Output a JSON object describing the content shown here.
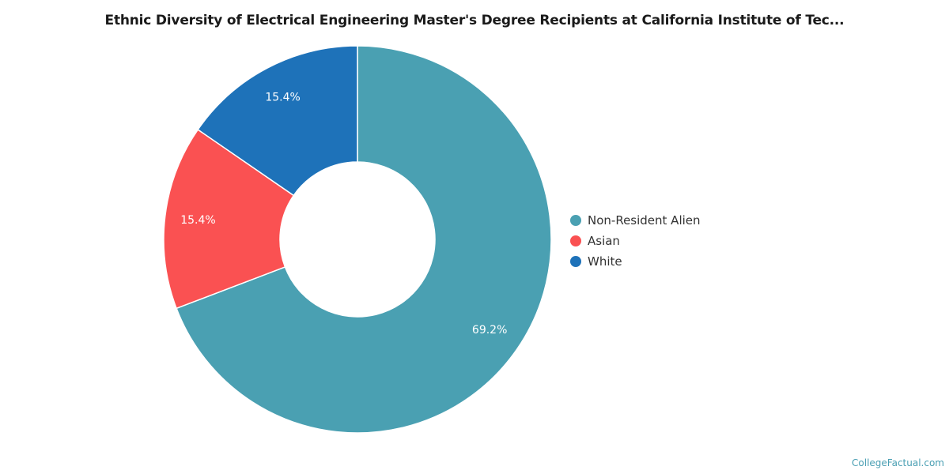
{
  "chart_data": {
    "type": "pie",
    "variant": "donut",
    "title": "Ethnic Diversity of Electrical Engineering Master's Degree Recipients at California Institute of Tec...",
    "slices": [
      {
        "label": "Non-Resident Alien",
        "value": 69.2,
        "display": "69.2%",
        "color": "#4aa0b2"
      },
      {
        "label": "Asian",
        "value": 15.4,
        "display": "15.4%",
        "color": "#fa5152"
      },
      {
        "label": "White",
        "value": 15.4,
        "display": "15.4%",
        "color": "#1e72b9"
      }
    ],
    "legend_position": "right"
  },
  "footer": {
    "credit": "CollegeFactual.com"
  }
}
